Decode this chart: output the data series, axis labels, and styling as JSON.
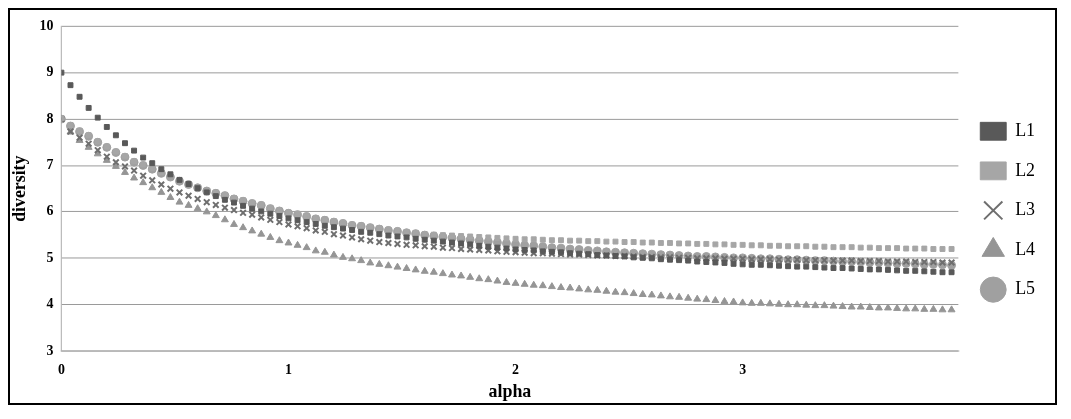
{
  "chart_data": {
    "type": "scatter",
    "xlabel": "alpha",
    "ylabel": "diversity",
    "x": [
      0,
      0.04,
      0.08,
      0.12,
      0.16,
      0.2,
      0.24,
      0.28,
      0.32,
      0.36,
      0.4,
      0.44,
      0.48,
      0.52,
      0.56,
      0.6,
      0.64,
      0.68,
      0.72,
      0.76,
      0.8,
      0.84,
      0.88,
      0.92,
      0.96,
      1,
      1.04,
      1.08,
      1.12,
      1.16,
      1.2,
      1.24,
      1.28,
      1.32,
      1.36,
      1.4,
      1.44,
      1.48,
      1.52,
      1.56,
      1.6,
      1.64,
      1.68,
      1.72,
      1.76,
      1.8,
      1.84,
      1.88,
      1.92,
      1.96,
      2,
      2.04,
      2.08,
      2.12,
      2.16,
      2.2,
      2.24,
      2.28,
      2.32,
      2.36,
      2.4,
      2.44,
      2.48,
      2.52,
      2.56,
      2.6,
      2.64,
      2.68,
      2.72,
      2.76,
      2.8,
      2.84,
      2.88,
      2.92,
      2.96,
      3,
      3.04,
      3.08,
      3.12,
      3.16,
      3.2,
      3.24,
      3.28,
      3.32,
      3.36,
      3.4,
      3.44,
      3.48,
      3.52,
      3.56,
      3.6,
      3.64,
      3.68,
      3.72,
      3.76,
      3.8,
      3.84,
      3.88,
      3.92
    ],
    "series": [
      {
        "name": "L1",
        "color": "#595959",
        "marker": "square",
        "values": [
          9.0,
          8.73,
          8.48,
          8.24,
          8.03,
          7.83,
          7.65,
          7.48,
          7.32,
          7.17,
          7.05,
          6.92,
          6.81,
          6.69,
          6.6,
          6.51,
          6.42,
          6.34,
          6.26,
          6.2,
          6.13,
          6.07,
          6.01,
          5.96,
          5.91,
          5.86,
          5.82,
          5.78,
          5.74,
          5.7,
          5.67,
          5.64,
          5.61,
          5.57,
          5.55,
          5.52,
          5.49,
          5.47,
          5.45,
          5.42,
          5.4,
          5.38,
          5.36,
          5.34,
          5.32,
          5.3,
          5.27,
          5.25,
          5.23,
          5.21,
          5.19,
          5.18,
          5.17,
          5.15,
          5.14,
          5.13,
          5.11,
          5.1,
          5.09,
          5.07,
          5.06,
          5.05,
          5.04,
          5.02,
          5.01,
          5.0,
          4.98,
          4.97,
          4.96,
          4.95,
          4.93,
          4.92,
          4.91,
          4.9,
          4.88,
          4.87,
          4.86,
          4.86,
          4.85,
          4.84,
          4.83,
          4.82,
          4.82,
          4.81,
          4.8,
          4.79,
          4.79,
          4.78,
          4.77,
          4.76,
          4.76,
          4.75,
          4.74,
          4.73,
          4.73,
          4.72,
          4.71,
          4.7,
          4.7
        ]
      },
      {
        "name": "L2",
        "color": "#a6a6a6",
        "marker": "square",
        "values": [
          8.02,
          7.87,
          7.75,
          7.65,
          7.52,
          7.41,
          7.3,
          7.2,
          7.09,
          7.02,
          6.94,
          6.85,
          null,
          null,
          null,
          null,
          null,
          6.42,
          6.37,
          6.3,
          6.25,
          6.2,
          6.16,
          6.09,
          6.04,
          5.99,
          5.96,
          5.92,
          5.87,
          5.84,
          5.8,
          5.77,
          5.73,
          5.71,
          5.68,
          5.65,
          5.62,
          5.6,
          5.57,
          5.55,
          5.52,
          5.51,
          5.5,
          5.49,
          5.48,
          5.47,
          5.46,
          5.45,
          5.44,
          5.43,
          5.42,
          5.41,
          5.41,
          5.4,
          5.39,
          5.39,
          5.38,
          5.38,
          5.37,
          5.37,
          5.36,
          5.36,
          5.35,
          5.35,
          5.34,
          5.34,
          5.33,
          5.33,
          5.32,
          5.32,
          5.31,
          5.31,
          5.3,
          5.3,
          5.29,
          5.29,
          5.28,
          5.28,
          5.27,
          5.27,
          5.26,
          5.26,
          5.26,
          5.25,
          5.25,
          5.24,
          5.24,
          5.24,
          5.23,
          5.23,
          5.22,
          5.22,
          5.22,
          5.21,
          5.21,
          5.21,
          5.2,
          5.2,
          5.2
        ]
      },
      {
        "name": "L3",
        "color": "#6f6f6f",
        "marker": "cross",
        "values": [
          8.0,
          7.73,
          7.6,
          7.47,
          7.33,
          7.19,
          7.07,
          6.98,
          6.89,
          6.78,
          6.68,
          6.59,
          6.5,
          6.42,
          6.35,
          6.28,
          6.21,
          6.15,
          6.09,
          6.04,
          5.98,
          5.94,
          5.88,
          5.83,
          5.78,
          5.73,
          5.69,
          5.65,
          5.6,
          5.57,
          5.52,
          5.49,
          5.45,
          5.41,
          5.38,
          5.35,
          5.33,
          5.31,
          5.29,
          5.28,
          5.26,
          5.25,
          5.23,
          5.22,
          5.2,
          5.19,
          5.18,
          5.17,
          5.15,
          5.14,
          5.13,
          5.12,
          5.11,
          5.11,
          5.1,
          5.09,
          5.08,
          5.08,
          5.07,
          5.06,
          5.06,
          5.05,
          5.05,
          5.04,
          5.03,
          5.03,
          5.02,
          5.02,
          5.01,
          5.01,
          5.0,
          5.0,
          5.0,
          4.99,
          4.99,
          4.99,
          4.98,
          4.98,
          4.98,
          4.97,
          4.97,
          4.97,
          4.96,
          4.96,
          4.96,
          4.95,
          4.95,
          4.95,
          4.94,
          4.94,
          4.94,
          4.93,
          4.93,
          4.93,
          4.92,
          4.92,
          4.92,
          4.91,
          4.91
        ]
      },
      {
        "name": "L4",
        "color": "#959595",
        "marker": "triangle",
        "values": [
          8.0,
          7.72,
          7.54,
          7.39,
          7.25,
          7.11,
          6.98,
          6.85,
          6.73,
          6.63,
          6.52,
          6.42,
          6.31,
          6.21,
          6.14,
          6.07,
          6.0,
          5.92,
          5.83,
          5.73,
          5.66,
          5.59,
          5.52,
          5.45,
          5.38,
          5.33,
          5.28,
          5.23,
          5.16,
          5.13,
          5.07,
          5.02,
          4.99,
          4.95,
          4.9,
          4.87,
          4.84,
          4.81,
          4.78,
          4.75,
          4.72,
          4.7,
          4.67,
          4.64,
          4.62,
          4.59,
          4.56,
          4.54,
          4.51,
          4.48,
          4.46,
          4.44,
          4.42,
          4.41,
          4.39,
          4.37,
          4.36,
          4.34,
          4.32,
          4.31,
          4.29,
          4.27,
          4.26,
          4.24,
          4.22,
          4.21,
          4.19,
          4.17,
          4.16,
          4.14,
          4.12,
          4.11,
          4.09,
          4.07,
          4.06,
          4.04,
          4.03,
          4.03,
          4.02,
          4.01,
          4.0,
          4.0,
          3.99,
          3.98,
          3.98,
          3.97,
          3.96,
          3.95,
          3.95,
          3.94,
          3.93,
          3.93,
          3.92,
          3.91,
          3.91,
          3.9,
          3.9,
          3.89,
          3.89
        ]
      },
      {
        "name": "L5",
        "color": "#a0a0a0",
        "marker": "circle",
        "values": [
          8.0,
          7.85,
          7.73,
          7.63,
          7.5,
          7.39,
          7.28,
          7.18,
          7.07,
          7.0,
          6.92,
          6.83,
          6.75,
          6.66,
          6.59,
          6.52,
          6.45,
          6.4,
          6.35,
          6.28,
          6.23,
          6.18,
          6.14,
          6.07,
          6.02,
          5.97,
          5.94,
          5.9,
          5.85,
          5.82,
          5.78,
          5.75,
          5.71,
          5.69,
          5.66,
          5.63,
          5.6,
          5.58,
          5.55,
          5.53,
          5.5,
          5.48,
          5.46,
          5.44,
          5.42,
          5.4,
          5.38,
          5.36,
          5.34,
          5.32,
          5.3,
          5.28,
          5.27,
          5.25,
          5.23,
          5.22,
          5.2,
          5.19,
          5.17,
          5.16,
          5.14,
          5.13,
          5.12,
          5.11,
          5.1,
          5.09,
          5.08,
          5.07,
          5.06,
          5.05,
          5.04,
          5.04,
          5.03,
          5.02,
          5.01,
          5.01,
          5.0,
          4.99,
          4.99,
          4.98,
          4.97,
          4.97,
          4.96,
          4.95,
          4.95,
          4.94,
          4.93,
          4.93,
          4.92,
          4.91,
          4.91,
          4.9,
          4.89,
          4.89,
          4.88,
          4.87,
          4.87,
          4.86,
          4.85
        ]
      }
    ],
    "xlim": [
      0,
      3.95
    ],
    "xticks": [
      0,
      1,
      2,
      3
    ],
    "ylim": [
      3,
      10
    ],
    "yticks": [
      3,
      4,
      5,
      6,
      7,
      8,
      9,
      10
    ],
    "grid": "y",
    "legend": "right"
  }
}
